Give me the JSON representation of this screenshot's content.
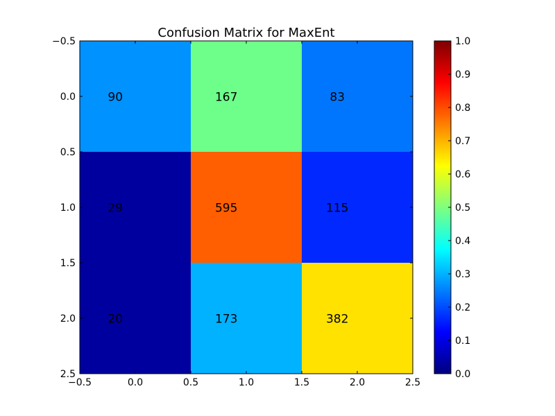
{
  "chart_data": {
    "type": "heatmap",
    "title": "Confusion Matrix for MaxEnt",
    "xlabel": "",
    "ylabel": "",
    "matrix": [
      [
        90,
        167,
        83
      ],
      [
        29,
        595,
        115
      ],
      [
        20,
        173,
        382
      ]
    ],
    "cell_labels": [
      [
        "90",
        "167",
        "83"
      ],
      [
        "29",
        "595",
        "115"
      ],
      [
        "20",
        "173",
        "382"
      ]
    ],
    "cell_colors": [
      [
        "#0092ff",
        "#6dff8a",
        "#0076ff"
      ],
      [
        "#00009f",
        "#ff5f00",
        "#0028ff"
      ],
      [
        "#00009f",
        "#00b2ff",
        "#ffe200"
      ]
    ],
    "xlim": [
      -0.5,
      2.5
    ],
    "ylim": [
      2.5,
      -0.5
    ],
    "x_ticks": [
      {
        "value": -0.5,
        "label": "−0.5"
      },
      {
        "value": 0.0,
        "label": "0.0"
      },
      {
        "value": 0.5,
        "label": "0.5"
      },
      {
        "value": 1.0,
        "label": "1.0"
      },
      {
        "value": 1.5,
        "label": "1.5"
      },
      {
        "value": 2.0,
        "label": "2.0"
      },
      {
        "value": 2.5,
        "label": "2.5"
      }
    ],
    "y_ticks": [
      {
        "value": -0.5,
        "label": "−0.5"
      },
      {
        "value": 0.0,
        "label": "0.0"
      },
      {
        "value": 0.5,
        "label": "0.5"
      },
      {
        "value": 1.0,
        "label": "1.0"
      },
      {
        "value": 1.5,
        "label": "1.5"
      },
      {
        "value": 2.0,
        "label": "2.0"
      },
      {
        "value": 2.5,
        "label": "2.5"
      }
    ],
    "colorbar": {
      "colormap": "jet",
      "range": [
        0.0,
        1.0
      ],
      "ticks": [
        {
          "value": 0.0,
          "label": "0.0"
        },
        {
          "value": 0.1,
          "label": "0.1"
        },
        {
          "value": 0.2,
          "label": "0.2"
        },
        {
          "value": 0.3,
          "label": "0.3"
        },
        {
          "value": 0.4,
          "label": "0.4"
        },
        {
          "value": 0.5,
          "label": "0.5"
        },
        {
          "value": 0.6,
          "label": "0.6"
        },
        {
          "value": 0.7,
          "label": "0.7"
        },
        {
          "value": 0.8,
          "label": "0.8"
        },
        {
          "value": 0.9,
          "label": "0.9"
        },
        {
          "value": 1.0,
          "label": "1.0"
        }
      ],
      "gradient_stops": [
        "#00007f",
        "#0000ff",
        "#007fff",
        "#00ffff",
        "#7fff7f",
        "#ffff00",
        "#ff7f00",
        "#ff0000",
        "#7f0000"
      ]
    },
    "grid": false
  }
}
